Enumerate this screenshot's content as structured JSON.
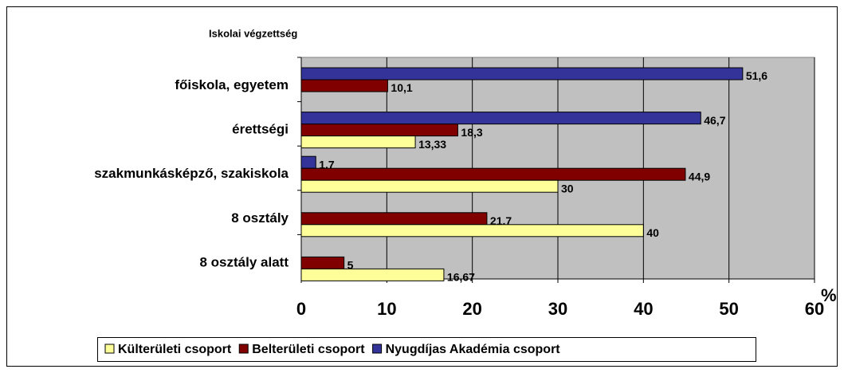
{
  "chart_data": {
    "type": "bar",
    "orientation": "horizontal",
    "title": "Iskolai végzettség",
    "x_label": "%",
    "categories": [
      "főiskola, egyetem",
      "érettségi",
      "szakmunkásképző, szakiskola",
      "8 osztály",
      "8 osztály alatt"
    ],
    "series": [
      {
        "name": "Nyugdíjas Akadémia csoport",
        "color": "#333399",
        "values": [
          51.6,
          46.7,
          1.7,
          null,
          null
        ],
        "value_labels": [
          "51,6",
          "46,7",
          "1,7",
          null,
          null
        ]
      },
      {
        "name": "Belterületi csoport",
        "color": "#800000",
        "values": [
          10.1,
          18.3,
          44.9,
          21.7,
          5
        ],
        "value_labels": [
          "10,1",
          "18,3",
          "44,9",
          "21,7",
          "5"
        ]
      },
      {
        "name": "Külterületi csoport",
        "color": "#ffff99",
        "values": [
          null,
          13.33,
          30,
          40,
          16.67
        ],
        "value_labels": [
          null,
          "13,33",
          "30",
          "40",
          "16,67"
        ]
      }
    ],
    "legend_order": [
      2,
      1,
      0
    ],
    "xlim": [
      0,
      60
    ],
    "xticks": [
      0,
      10,
      20,
      30,
      40,
      50,
      60
    ],
    "grid": true
  }
}
